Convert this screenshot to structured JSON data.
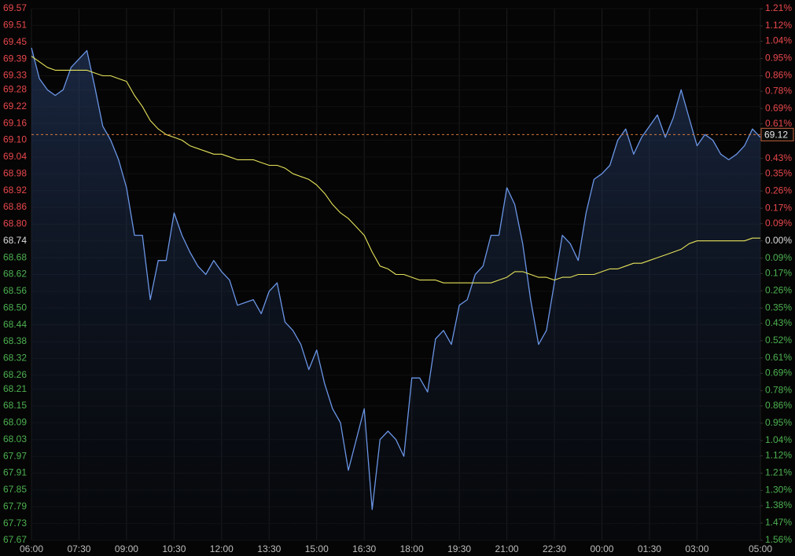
{
  "chart_data": {
    "type": "line",
    "categories": [
      "06:00",
      null,
      null,
      null,
      null,
      null,
      "07:30",
      null,
      null,
      null,
      null,
      null,
      "09:00",
      null,
      null,
      null,
      null,
      null,
      "10:30",
      null,
      null,
      null,
      null,
      null,
      "12:00",
      null,
      null,
      null,
      null,
      null,
      "13:30",
      null,
      null,
      null,
      null,
      null,
      "15:00",
      null,
      null,
      null,
      null,
      null,
      "16:30",
      null,
      null,
      null,
      null,
      null,
      "18:00",
      null,
      null,
      null,
      null,
      null,
      "19:30",
      null,
      null,
      null,
      null,
      null,
      "21:00",
      null,
      null,
      null,
      null,
      null,
      "22:30",
      null,
      null,
      null,
      null,
      null,
      "00:00",
      null,
      null,
      null,
      null,
      null,
      "01:30",
      null,
      null,
      null,
      null,
      null,
      "03:00",
      null,
      null,
      null,
      null,
      null,
      null,
      null,
      "05:00"
    ],
    "series": [
      {
        "color": "#6a95e6",
        "area": true,
        "values": [
          69.43,
          69.32,
          69.28,
          69.26,
          69.28,
          69.36,
          69.39,
          69.42,
          69.29,
          69.15,
          69.1,
          69.03,
          68.93,
          68.76,
          68.76,
          68.53,
          68.67,
          68.67,
          68.84,
          68.76,
          68.7,
          68.65,
          68.62,
          68.67,
          68.63,
          68.6,
          68.51,
          68.52,
          68.53,
          68.48,
          68.56,
          68.59,
          68.45,
          68.42,
          68.37,
          68.28,
          68.35,
          68.23,
          68.14,
          68.09,
          67.92,
          68.03,
          68.14,
          67.78,
          68.03,
          68.06,
          68.03,
          67.97,
          68.25,
          68.25,
          68.2,
          68.39,
          68.42,
          68.37,
          68.51,
          68.53,
          68.62,
          68.65,
          68.76,
          68.76,
          68.93,
          68.87,
          68.73,
          68.53,
          68.37,
          68.42,
          68.59,
          68.76,
          68.73,
          68.67,
          68.84,
          68.96,
          68.98,
          69.01,
          69.1,
          69.14,
          69.05,
          69.11,
          69.15,
          69.19,
          69.11,
          69.18,
          69.28,
          69.18,
          69.08,
          69.12,
          69.1,
          69.05,
          69.03,
          69.05,
          69.08,
          69.14,
          69.11
        ]
      },
      {
        "color": "#e6e35a",
        "area": false,
        "values": [
          69.4,
          69.38,
          69.36,
          69.35,
          69.35,
          69.35,
          69.35,
          69.35,
          69.34,
          69.33,
          69.33,
          69.32,
          69.31,
          69.26,
          69.22,
          69.17,
          69.14,
          69.12,
          69.11,
          69.1,
          69.08,
          69.07,
          69.06,
          69.05,
          69.05,
          69.04,
          69.03,
          69.03,
          69.03,
          69.02,
          69.01,
          69.01,
          69.0,
          68.98,
          68.97,
          68.96,
          68.94,
          68.91,
          68.87,
          68.84,
          68.82,
          68.79,
          68.76,
          68.7,
          68.65,
          68.64,
          68.62,
          68.62,
          68.61,
          68.6,
          68.6,
          68.6,
          68.59,
          68.59,
          68.59,
          68.59,
          68.59,
          68.59,
          68.59,
          68.6,
          68.61,
          68.63,
          68.63,
          68.62,
          68.61,
          68.61,
          68.6,
          68.61,
          68.61,
          68.62,
          68.62,
          68.62,
          68.63,
          68.64,
          68.64,
          68.65,
          68.66,
          68.66,
          68.67,
          68.68,
          68.69,
          68.7,
          68.71,
          68.73,
          68.74,
          68.74,
          68.74,
          68.74,
          68.74,
          68.74,
          68.74,
          68.75,
          68.75
        ]
      }
    ],
    "last_price": 69.12,
    "reference": 68.74,
    "up_color": "#e8474c",
    "down_color": "#4cb050",
    "ylim": [
      67.67,
      69.57
    ],
    "yticks": [
      69.57,
      69.51,
      69.45,
      69.39,
      69.33,
      69.28,
      69.22,
      69.16,
      {
        "value": 69.1,
        "label": "69.10"
      },
      69.04,
      68.98,
      68.92,
      68.86,
      {
        "value": 68.8,
        "label": "68.80"
      },
      68.74,
      68.68,
      68.62,
      68.56,
      {
        "value": 68.5,
        "label": "68.50"
      },
      68.44,
      68.38,
      68.32,
      68.26,
      68.21,
      68.15,
      68.09,
      68.03,
      67.97,
      67.91,
      67.85,
      67.79,
      67.73,
      67.67
    ],
    "y2lim": [
      -1.56,
      1.21
    ],
    "y2ticks": [
      {
        "value": 1.21,
        "label": "1.21%"
      },
      {
        "value": 1.12,
        "label": "1.12%"
      },
      {
        "value": 1.04,
        "label": "1.04%"
      },
      {
        "value": 0.95,
        "label": "0.95%"
      },
      {
        "value": 0.86,
        "label": "0.86%"
      },
      {
        "value": 0.78,
        "label": "0.78%"
      },
      {
        "value": 0.69,
        "label": "0.69%"
      },
      {
        "value": 0.61,
        "label": "0.61%"
      },
      {
        "value": 0.43,
        "label": "0.43%"
      },
      {
        "value": 0.35,
        "label": "0.35%"
      },
      {
        "value": 0.26,
        "label": "0.26%"
      },
      {
        "value": 0.17,
        "label": "0.17%"
      },
      {
        "value": 0.09,
        "label": "0.09%"
      },
      {
        "value": 0,
        "label": "0.00%"
      },
      {
        "value": -0.09,
        "label": "0.09%"
      },
      {
        "value": -0.17,
        "label": "0.17%"
      },
      {
        "value": -0.26,
        "label": "0.26%"
      },
      {
        "value": -0.35,
        "label": "0.35%"
      },
      {
        "value": -0.43,
        "label": "0.43%"
      },
      {
        "value": -0.52,
        "label": "0.52%"
      },
      {
        "value": -0.61,
        "label": "0.61%"
      },
      {
        "value": -0.69,
        "label": "0.69%"
      },
      {
        "value": -0.78,
        "label": "0.78%"
      },
      {
        "value": -0.86,
        "label": "0.86%"
      },
      {
        "value": -0.95,
        "label": "0.95%"
      },
      {
        "value": -1.04,
        "label": "1.04%"
      },
      {
        "value": -1.12,
        "label": "1.12%"
      },
      {
        "value": -1.21,
        "label": "1.21%"
      },
      {
        "value": -1.3,
        "label": "1.30%"
      },
      {
        "value": -1.38,
        "label": "1.38%"
      },
      {
        "value": -1.47,
        "label": "1.47%"
      },
      {
        "value": -1.56,
        "label": "1.56%"
      }
    ],
    "grid": true
  }
}
